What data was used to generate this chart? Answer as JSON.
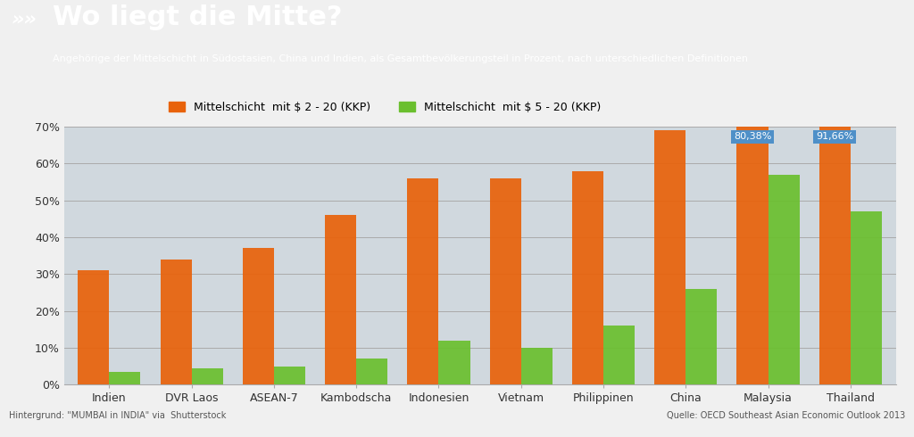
{
  "title": "Wo liegt die Mitte?",
  "subtitle": "Angehörige der Mittelschicht in Südostasien, China und Indien, als Gesamtbevölkerungsteil in Prozent, nach unterschiedlichen Definitionen",
  "title_color": "#ffffff",
  "header_bg_color": "#1e5799",
  "categories": [
    "Indien",
    "DVR Laos",
    "ASEAN-7",
    "Kambodscha",
    "Indonesien",
    "Vietnam",
    "Philippinen",
    "China",
    "Malaysia",
    "Thailand"
  ],
  "series1_label": "Mittelschicht  mit $ 2 - 20 (KKP)",
  "series2_label": "Mittelschicht  mit $ 5 - 20 (KKP)",
  "series1_color": "#e8620a",
  "series2_color": "#6abf2e",
  "series1_values": [
    31,
    34,
    37,
    46,
    56,
    56,
    58,
    69,
    80.38,
    91.66
  ],
  "series2_values": [
    3.5,
    4.5,
    5,
    7,
    12,
    10,
    16,
    26,
    57,
    47
  ],
  "ylim_max": 70,
  "yticks": [
    0,
    10,
    20,
    30,
    40,
    50,
    60,
    70
  ],
  "ytick_labels": [
    "0%",
    "10%",
    "20%",
    "30%",
    "40%",
    "50%",
    "60%",
    "70%"
  ],
  "annotation_labels": [
    "80,38%",
    "91,66%"
  ],
  "annotation_indices": [
    8,
    9
  ],
  "annotation_bg_color": "#4f90c8",
  "annotation_text_color": "#ffffff",
  "footer_left": "Hintergrund: \"MUMBAI in INDIA\" via  Shutterstock",
  "footer_right": "Quelle: OECD Southeast Asian Economic Outlook 2013",
  "bar_width": 0.38,
  "chart_bg_color": "#d0d8de",
  "figure_bg_color": "#f0f0f0",
  "grid_color": "#aaaaaa",
  "figsize": [
    10.24,
    4.9
  ],
  "dpi": 100
}
